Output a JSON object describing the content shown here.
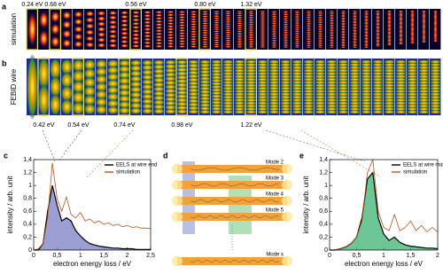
{
  "figure": {
    "a": {
      "letter": "a",
      "side_label": "simulation",
      "energies": [
        "0.24 eV",
        "0.68 eV",
        "0.56 eV",
        "0.80 eV",
        "1.32 eV"
      ]
    },
    "b": {
      "letter": "b",
      "side_label": "FEBID wire",
      "energies": [
        "0.42 eV",
        "0.54 eV",
        "0.74 eV",
        "0.98 eV",
        "1.22 eV"
      ]
    },
    "d": {
      "letter": "d",
      "modes": [
        "Mode 2",
        "Mode 3",
        "Mode 4",
        "Mode 5",
        "Mode x"
      ]
    }
  },
  "chart_data": [
    {
      "type": "line",
      "panel_label": "c",
      "x_label": "electron energy loss / eV",
      "y_label": "intensity / arb. unit",
      "legend": "top-right",
      "x": [
        0,
        0.1,
        0.2,
        0.3,
        0.4,
        0.5,
        0.6,
        0.7,
        0.8,
        0.9,
        1.0,
        1.1,
        1.2,
        1.3,
        1.4,
        1.5,
        1.6,
        1.7,
        1.8,
        1.9,
        2.0,
        2.1,
        2.2,
        2.3,
        2.4,
        2.5
      ],
      "xlim": [
        0,
        2.5
      ],
      "xticks": [
        0,
        {
          "value": 0.5,
          "label": "0,5"
        },
        1,
        {
          "value": 1.5,
          "label": "1,5"
        },
        2,
        {
          "value": 2.5,
          "label": "2,5"
        }
      ],
      "ylim": [
        0,
        1.4
      ],
      "yticks": [
        0,
        {
          "value": 0.2,
          "label": "0,2"
        },
        {
          "value": 0.4,
          "label": "0,4"
        },
        {
          "value": 0.6,
          "label": "0,6"
        },
        {
          "value": 0.8,
          "label": "0,8"
        },
        1,
        {
          "value": 1.2,
          "label": "1,2"
        },
        {
          "value": 1.4,
          "label": "1,4"
        }
      ],
      "series": [
        {
          "name": "EELS at wire end",
          "color": "#000000",
          "fill": "#7b7fc4",
          "values": [
            0,
            0,
            0.1,
            0.6,
            1.0,
            0.7,
            0.45,
            0.5,
            0.45,
            0.3,
            0.22,
            0.15,
            0.1,
            0.08,
            0.06,
            0.05,
            0.04,
            0.03,
            0.03,
            0.02,
            0.02,
            0.02,
            0.01,
            0.01,
            0.01,
            0.01
          ]
        },
        {
          "name": "simulation",
          "color": "#b5541e",
          "values": [
            0,
            0.02,
            0.1,
            0.5,
            1.35,
            0.8,
            0.6,
            0.82,
            0.55,
            0.5,
            0.58,
            0.45,
            0.48,
            0.42,
            0.45,
            0.4,
            0.42,
            0.38,
            0.4,
            0.36,
            0.38,
            0.35,
            0.36,
            0.34,
            0.34,
            0.33
          ]
        }
      ]
    },
    {
      "type": "line",
      "panel_label": "e",
      "x_label": "electron energy loss / eV",
      "y_label": "intensity / arb. unit",
      "legend": "top-right",
      "x": [
        0,
        0.1,
        0.2,
        0.3,
        0.4,
        0.5,
        0.6,
        0.7,
        0.8,
        0.9,
        1.0,
        1.1,
        1.2,
        1.3,
        1.4,
        1.5,
        1.6,
        1.7,
        1.8,
        1.9,
        2.0
      ],
      "xlim": [
        0,
        2
      ],
      "xticks": [
        0,
        {
          "value": 0.5,
          "label": "0,5"
        },
        1,
        {
          "value": 1.5,
          "label": "1,5"
        },
        2
      ],
      "ylim": [
        0,
        1.4
      ],
      "yticks": [
        0,
        {
          "value": 0.2,
          "label": "0,2"
        },
        {
          "value": 0.4,
          "label": "0,4"
        },
        {
          "value": 0.6,
          "label": "0,6"
        },
        {
          "value": 0.8,
          "label": "0,8"
        },
        1,
        {
          "value": 1.2,
          "label": "1,2"
        },
        {
          "value": 1.4,
          "label": "1,4"
        }
      ],
      "series": [
        {
          "name": "EELS at wire middle",
          "color": "#000000",
          "fill": "#3cb371",
          "values": [
            0,
            0,
            0.02,
            0.05,
            0.1,
            0.2,
            0.5,
            1.1,
            1.2,
            0.5,
            0.25,
            0.15,
            0.2,
            0.12,
            0.08,
            0.06,
            0.05,
            0.04,
            0.03,
            0.03,
            0.02
          ]
        },
        {
          "name": "simulation",
          "color": "#b5541e",
          "values": [
            0,
            0,
            0.02,
            0.05,
            0.1,
            0.2,
            0.45,
            1.2,
            1.4,
            0.6,
            0.35,
            0.3,
            0.55,
            0.3,
            0.35,
            0.45,
            0.3,
            0.38,
            0.28,
            0.35,
            0.28
          ]
        }
      ]
    }
  ]
}
